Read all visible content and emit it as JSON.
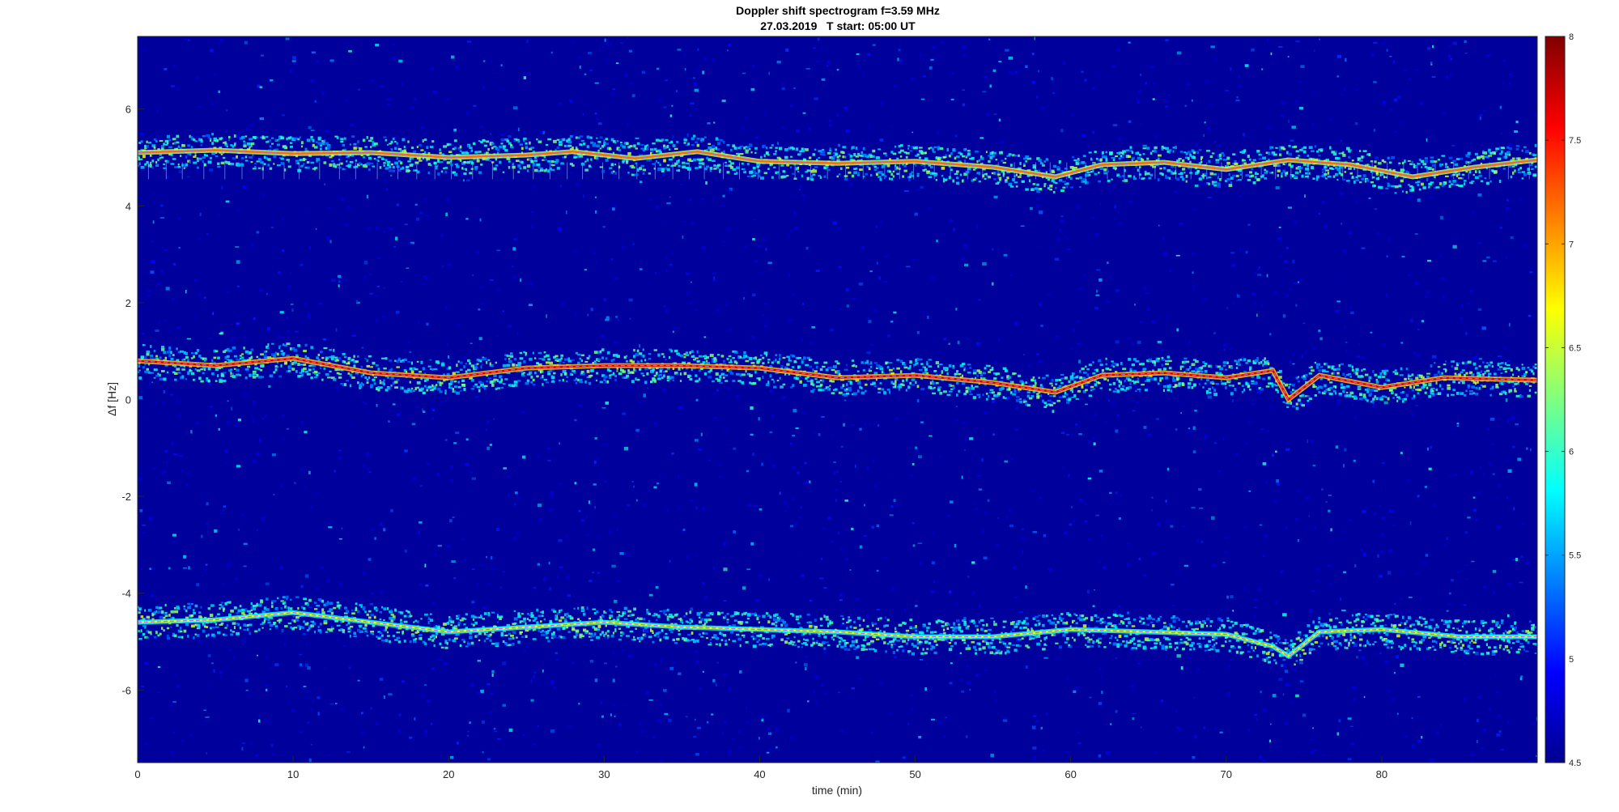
{
  "chart_data": {
    "type": "heatmap",
    "title": "Doppler shift spectrogram f=3.59 MHz",
    "subtitle": "27.03.2019   T start: 05:00 UT",
    "xlabel": "time (min)",
    "ylabel": "Δf [Hz]",
    "xlim": [
      0,
      90
    ],
    "ylim": [
      -7.5,
      7.5
    ],
    "xticks": [
      0,
      10,
      20,
      30,
      40,
      50,
      60,
      70,
      80
    ],
    "yticks": [
      -6,
      -4,
      -2,
      0,
      2,
      4,
      6
    ],
    "colorbar": {
      "colormap": "jet",
      "range": [
        4.5,
        8
      ],
      "ticks": [
        4.5,
        5,
        5.5,
        6,
        6.5,
        7,
        7.5,
        8
      ],
      "tick_labels": [
        "4.5",
        "5",
        "5.5",
        "6",
        "6.5",
        "7",
        "7.5",
        "8"
      ]
    },
    "grid": false,
    "traces": [
      {
        "x": [
          0,
          5,
          10,
          15,
          20,
          25,
          28,
          32,
          36,
          40,
          45,
          50,
          55,
          59,
          62,
          66,
          70,
          74,
          78,
          82,
          86,
          90
        ],
        "y": [
          5.1,
          5.15,
          5.08,
          5.1,
          5.0,
          5.05,
          5.12,
          4.98,
          5.12,
          4.92,
          4.88,
          4.92,
          4.8,
          4.6,
          4.85,
          4.9,
          4.75,
          4.95,
          4.85,
          4.6,
          4.8,
          4.95
        ],
        "intensity": 7.2
      },
      {
        "x": [
          0,
          5,
          10,
          15,
          20,
          25,
          30,
          35,
          40,
          45,
          50,
          55,
          59,
          62,
          66,
          70,
          73,
          74,
          76,
          80,
          84,
          90
        ],
        "y": [
          0.8,
          0.7,
          0.85,
          0.55,
          0.45,
          0.65,
          0.7,
          0.7,
          0.65,
          0.45,
          0.5,
          0.35,
          0.15,
          0.5,
          0.55,
          0.45,
          0.6,
          0.0,
          0.5,
          0.25,
          0.45,
          0.4
        ],
        "intensity": 7.7
      },
      {
        "x": [
          0,
          5,
          10,
          15,
          20,
          25,
          30,
          35,
          40,
          45,
          50,
          55,
          60,
          65,
          70,
          73,
          74,
          76,
          80,
          85,
          90
        ],
        "y": [
          -4.6,
          -4.55,
          -4.4,
          -4.6,
          -4.8,
          -4.7,
          -4.6,
          -4.7,
          -4.75,
          -4.8,
          -4.9,
          -4.9,
          -4.75,
          -4.8,
          -4.85,
          -5.1,
          -5.3,
          -4.8,
          -4.75,
          -4.9,
          -4.9
        ],
        "intensity": 6.6
      }
    ]
  }
}
